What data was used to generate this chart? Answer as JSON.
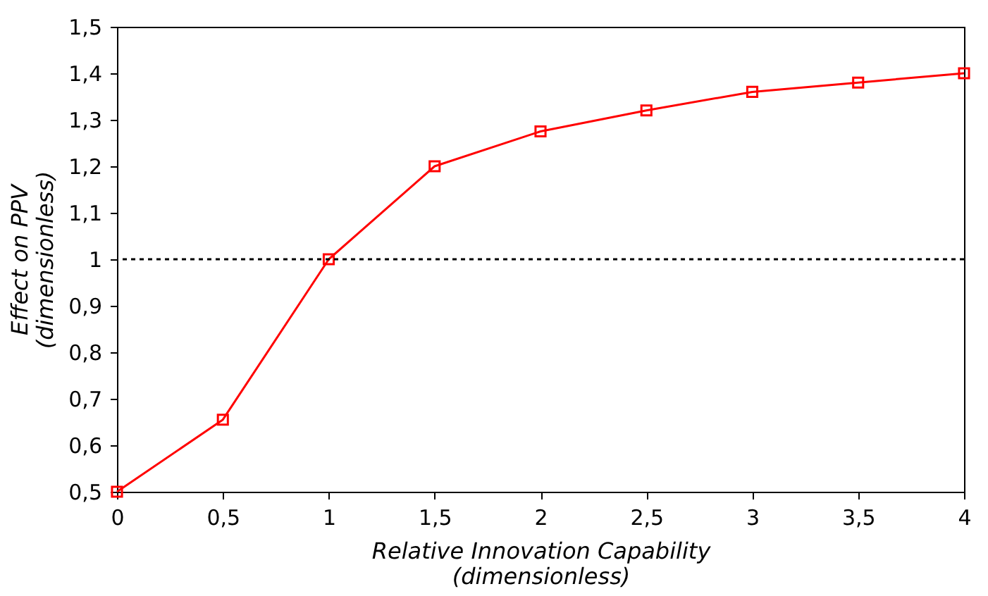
{
  "chart_data": {
    "type": "line",
    "xlabel": "Relative Innovation Capability\n(dimensionless)",
    "ylabel": "Effect on PPV\n(dimensionless)",
    "x": [
      0,
      0.5,
      1,
      1.5,
      2,
      2.5,
      3,
      3.5,
      4
    ],
    "series": [
      {
        "color": "#ff0000",
        "values": [
          0.5,
          0.655,
          1.0,
          1.2,
          1.275,
          1.32,
          1.36,
          1.38,
          1.4
        ]
      }
    ],
    "xlim": [
      0,
      4
    ],
    "xticks": [
      0,
      {
        "value": 0.5,
        "label": "0,5"
      },
      1,
      {
        "value": 1.5,
        "label": "1,5"
      },
      2,
      {
        "value": 2.5,
        "label": "2,5"
      },
      3,
      {
        "value": 3.5,
        "label": "3,5"
      },
      4
    ],
    "ylim": [
      0.5,
      1.5
    ],
    "yticks": [
      {
        "value": 0.5,
        "label": "0,5"
      },
      {
        "value": 0.6,
        "label": "0,6"
      },
      {
        "value": 0.7,
        "label": "0,7"
      },
      {
        "value": 0.8,
        "label": "0,8"
      },
      {
        "value": 0.9,
        "label": "0,9"
      },
      1,
      {
        "value": 1.1,
        "label": "1,1"
      },
      {
        "value": 1.2,
        "label": "1,2"
      },
      {
        "value": 1.3,
        "label": "1,3"
      },
      {
        "value": 1.4,
        "label": "1,4"
      },
      {
        "value": 1.5,
        "label": "1,5"
      }
    ],
    "ref_lines": [
      {
        "axis": "y",
        "value": 1,
        "color": "#000000",
        "line_style": "dotted"
      }
    ],
    "marker": "square",
    "line_style": "solid",
    "grid": false
  }
}
